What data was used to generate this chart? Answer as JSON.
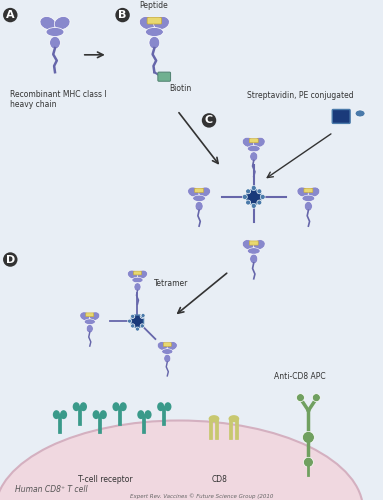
{
  "title": "",
  "bg_color": "#e8eef5",
  "cell_color": "#f0d8e0",
  "cell_border_color": "#d4b0c0",
  "mhc_color": "#8888cc",
  "mhc_dark": "#6666aa",
  "peptide_color": "#e8d870",
  "biotin_color": "#70b090",
  "streptavidin_color": "#1a3a7a",
  "streptavidin_light": "#4a7aaa",
  "tcr_color": "#3a9a8a",
  "cd8_color": "#c8c870",
  "anti_cd8_color": "#70a060",
  "label_A": "A",
  "label_B": "B",
  "label_C": "C",
  "label_D": "D",
  "text_recombinant": "Recombinant MHC class I\nheavy chain",
  "text_peptide": "Peptide",
  "text_biotin": "Biotin",
  "text_streptavidin": "Streptavidin, PE conjugated",
  "text_tetramer": "Tetramer",
  "text_tcr": "T-cell receptor",
  "text_cd8": "CD8",
  "text_anti_cd8": "Anti-CD8 APC",
  "text_human_t_cell": "Human CD8⁺ T cell",
  "text_copyright": "Expert Rev. Vaccines © Future Science Group (2010",
  "arrow_color": "#333333",
  "figwidth": 3.83,
  "figheight": 5.0,
  "dpi": 100
}
